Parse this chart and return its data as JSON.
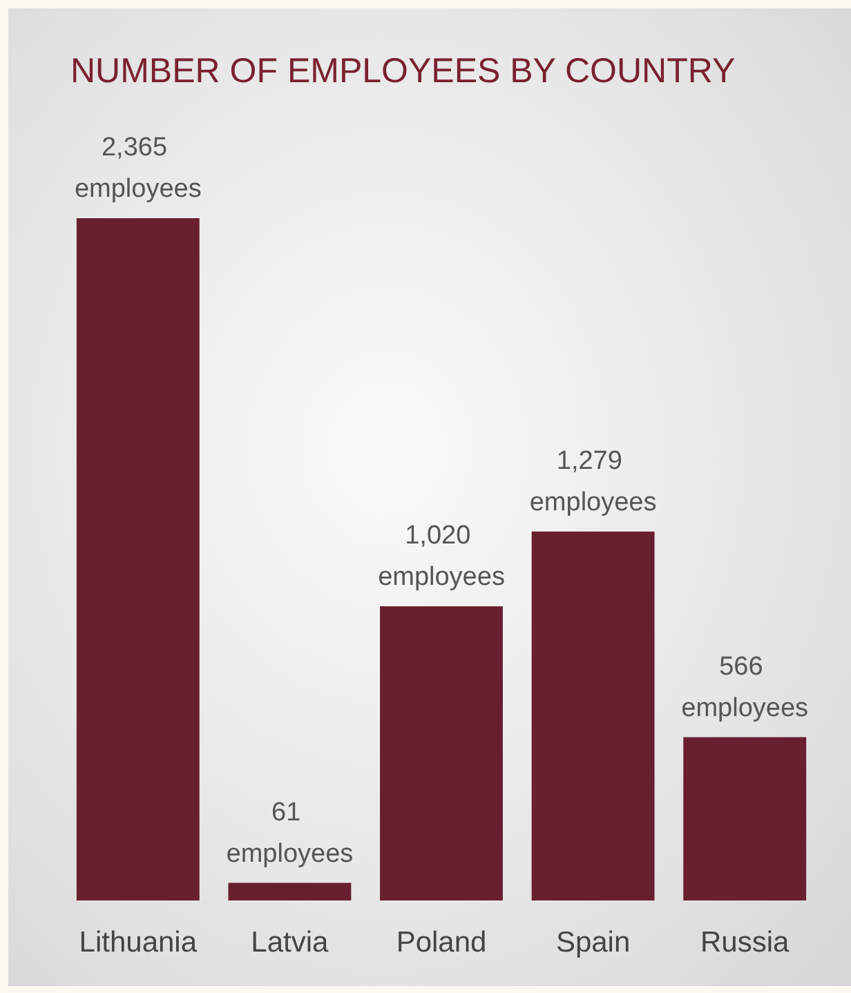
{
  "chart_data": {
    "type": "bar",
    "title": "NUMBER OF EMPLOYEES BY COUNTRY",
    "categories": [
      "Lithuania",
      "Latvia",
      "Poland",
      "Spain",
      "Russia"
    ],
    "values": [
      2365,
      61,
      1020,
      1279,
      566
    ],
    "value_labels": [
      "2,365 employees",
      "61 employees",
      "1,020 employees",
      "1,279 employees",
      "566 employees"
    ],
    "color": "#681f2f",
    "tick_labels": "x"
  }
}
